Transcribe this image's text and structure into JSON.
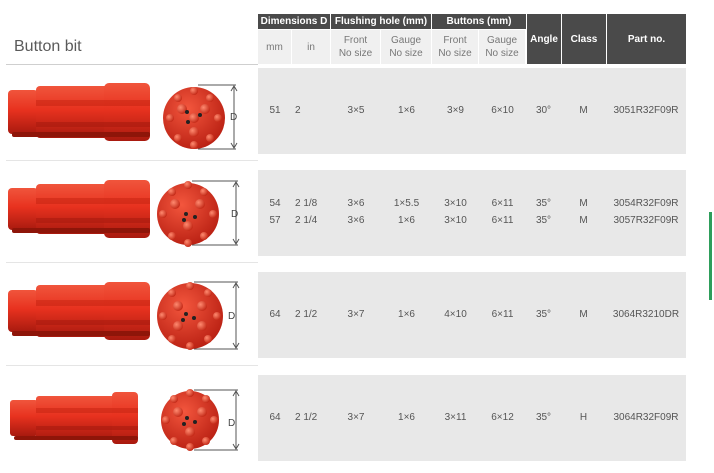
{
  "title": "Button bit",
  "header": {
    "groups": {
      "dimensions": "Dimensions D",
      "flushing": "Flushing hole (mm)",
      "buttons": "Buttons (mm)"
    },
    "subs": {
      "mm": "mm",
      "in": "in",
      "flush_front": [
        "Front",
        "No size"
      ],
      "flush_gauge": [
        "Gauge",
        "No size"
      ],
      "btn_front": [
        "Front",
        "No size"
      ],
      "btn_gauge": [
        "Gauge",
        "No size"
      ]
    },
    "angle": "Angle",
    "class": "Class",
    "part": "Part no."
  },
  "diagram_label": "D",
  "rows": [
    {
      "lines": [
        {
          "mm": "51",
          "in": "2",
          "flush_front": "3×5",
          "flush_gauge": "1×6",
          "btn_front": "3×9",
          "btn_gauge": "6×10",
          "angle": "30°",
          "class": "M",
          "part": "3051R32F09R"
        }
      ]
    },
    {
      "lines": [
        {
          "mm": "54",
          "in": "2 1/8",
          "flush_front": "3×6",
          "flush_gauge": "1×5.5",
          "btn_front": "3×10",
          "btn_gauge": "6×11",
          "angle": "35°",
          "class": "M",
          "part": "3054R32F09R"
        },
        {
          "mm": "57",
          "in": "2 1/4",
          "flush_front": "3×6",
          "flush_gauge": "1×6",
          "btn_front": "3×10",
          "btn_gauge": "6×11",
          "angle": "35°",
          "class": "M",
          "part": "3057R32F09R"
        }
      ]
    },
    {
      "lines": [
        {
          "mm": "64",
          "in": "2 1/2",
          "flush_front": "3×7",
          "flush_gauge": "1×6",
          "btn_front": "4×10",
          "btn_gauge": "6×11",
          "angle": "35°",
          "class": "M",
          "part": "3064R3210DR"
        }
      ]
    },
    {
      "lines": [
        {
          "mm": "64",
          "in": "2 1/2",
          "flush_front": "3×7",
          "flush_gauge": "1×6",
          "btn_front": "3×11",
          "btn_gauge": "6×12",
          "angle": "35°",
          "class": "H",
          "part": "3064R32F09R"
        }
      ]
    }
  ],
  "colors": {
    "bit_red": "#e8321f",
    "bit_dark": "#b51e12",
    "header_dark": "#4a4a4a",
    "row_bg": "#e8e8e8"
  }
}
